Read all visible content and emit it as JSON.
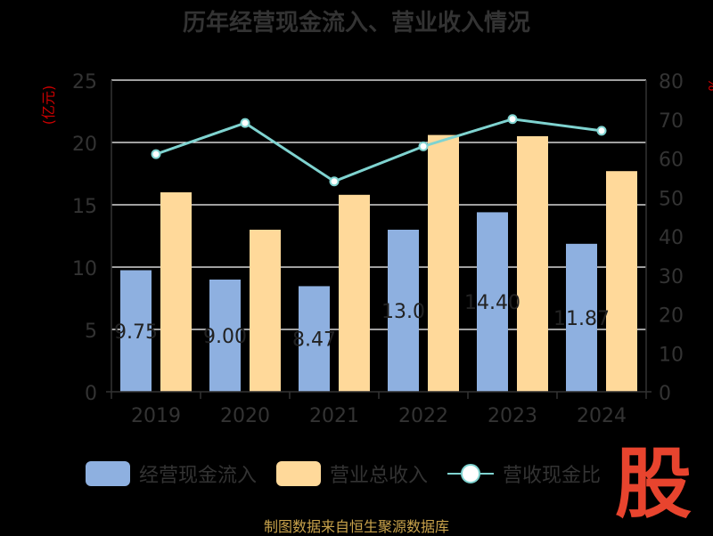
{
  "chart_data": {
    "type": "bar",
    "title": "历年经营现金流入、营业收入情况",
    "categories": [
      "2019",
      "2020",
      "2021",
      "2022",
      "2023",
      "2024"
    ],
    "y_left": {
      "label": "(亿元)",
      "range": [
        0,
        25
      ],
      "ticks": [
        "0",
        "5",
        "10",
        "15",
        "20",
        "25"
      ]
    },
    "y_right": {
      "label": "%",
      "range": [
        0,
        80
      ],
      "ticks": [
        "0",
        "10",
        "20",
        "30",
        "40",
        "50",
        "60",
        "70",
        "80"
      ]
    },
    "series": [
      {
        "name": "经营现金流入",
        "type": "bar",
        "axis": "left",
        "color": "#8eb0e0",
        "values": [
          9.75,
          9.0,
          8.47,
          13.0,
          14.4,
          11.87
        ],
        "labels": [
          "9.75",
          "9.00",
          "8.47",
          "13.0",
          "14.40",
          "11.87"
        ]
      },
      {
        "name": "营业总收入",
        "type": "bar",
        "axis": "left",
        "color": "#ffd99a",
        "values": [
          16.0,
          13.0,
          15.8,
          20.6,
          20.5,
          17.7
        ]
      },
      {
        "name": "营收现金比",
        "type": "line",
        "axis": "right",
        "color": "#7fd3d0",
        "values": [
          61,
          69,
          54,
          63,
          70,
          67
        ]
      }
    ],
    "grid": true,
    "legend_position": "bottom"
  },
  "footer": "制图数据来自恒生聚源数据库",
  "logo_char": "股",
  "colors": {
    "background": "#000000",
    "axis_text": "#333333",
    "unit_red": "#cc0000",
    "footer": "#c8a24b"
  }
}
